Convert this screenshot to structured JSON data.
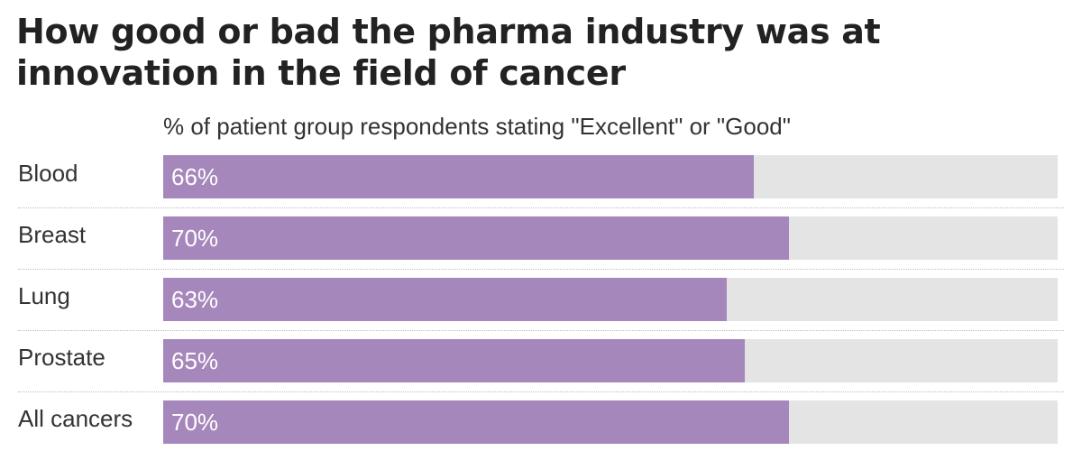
{
  "colors": {
    "bar": "#a687bb",
    "track": "#e4e4e4",
    "value_text": "#ffffff"
  },
  "chart_data": {
    "type": "bar",
    "orientation": "horizontal",
    "title": "How good or bad the pharma industry was at innovation in the field of cancer",
    "subtitle": "% of patient group respondents stating \"Excellent\" or \"Good\"",
    "categories": [
      "Blood",
      "Breast",
      "Lung",
      "Prostate",
      "All cancers"
    ],
    "values": [
      66,
      70,
      63,
      65,
      70
    ],
    "value_labels": [
      "66%",
      "70%",
      "63%",
      "65%",
      "70%"
    ],
    "xlim": [
      0,
      100
    ],
    "unit": "%",
    "legend": "none",
    "grid": false
  }
}
